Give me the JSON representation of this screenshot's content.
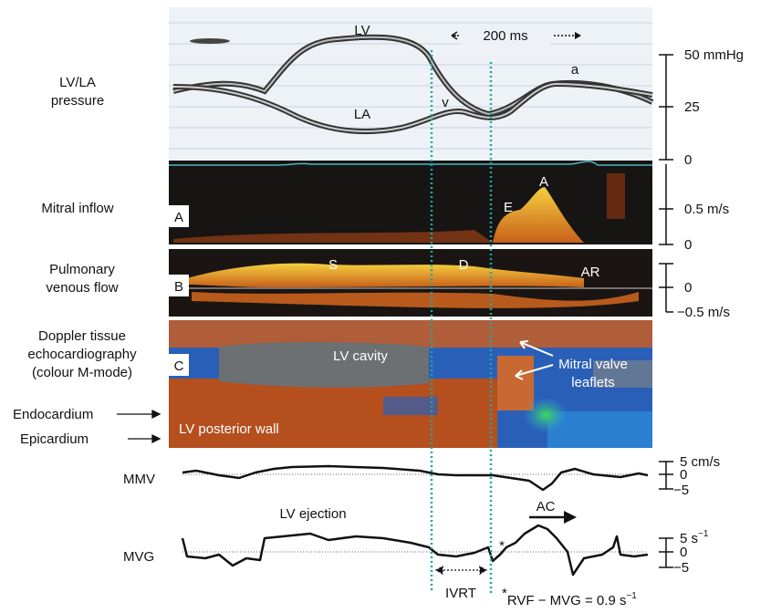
{
  "labels": {
    "lv_la_pressure": [
      "LV/LA",
      "pressure"
    ],
    "mitral_inflow": "Mitral inflow",
    "pulmonary_venous_flow": [
      "Pulmonary",
      "venous flow"
    ],
    "dte": [
      "Doppler tissue",
      "echocardiography",
      "(colour M-mode)"
    ],
    "endocardium": "Endocardium",
    "epicardium": "Epicardium",
    "mmv": "MMV",
    "mvg": "MVG"
  },
  "panels": {
    "a": "A",
    "b": "B",
    "c": "C"
  },
  "pressure": {
    "lv": "LV",
    "la": "LA",
    "v": "v",
    "a": "a",
    "time_scale": "200 ms"
  },
  "mitral": {
    "a_wave": "A",
    "e_wave": "E"
  },
  "pulmonary": {
    "s": "S",
    "d": "D",
    "ar": "AR"
  },
  "dti": {
    "cavity": "LV cavity",
    "leaflets": [
      "Mitral valve",
      "leaflets"
    ],
    "wall": "LV posterior wall"
  },
  "scales": {
    "pressure": [
      "50 mmHg",
      "25",
      "0"
    ],
    "mitral": [
      "0.5 m/s",
      "0"
    ],
    "pulmonary": [
      "0",
      "−0.5 m/s"
    ],
    "mmv": [
      "5 cm/s",
      "0",
      "−5"
    ],
    "mvg": [
      {
        "text": "5 s",
        "sup": "−1"
      },
      "0",
      "−5"
    ]
  },
  "annotations": {
    "lv_ejection": "LV ejection",
    "ac": "AC",
    "ivrt": "IVRT",
    "asterisk": "*",
    "footnote": {
      "star": "*",
      "text": "RVF − MVG = 0.9 s",
      "sup": "−1"
    }
  }
}
